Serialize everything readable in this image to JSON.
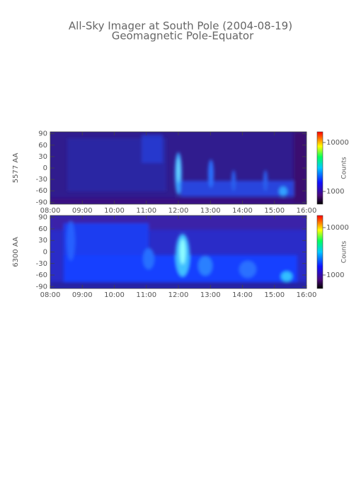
{
  "header": {
    "title": "All-Sky Imager at South Pole (2004-08-19)",
    "subtitle": "Geomagnetic Pole-Equator"
  },
  "chart_data": [
    {
      "type": "heatmap",
      "y_label": "5577 AA",
      "xlim": [
        8,
        16
      ],
      "xticks": [
        {
          "value": 8,
          "label": "08:00"
        },
        {
          "value": 9,
          "label": "09:00"
        },
        {
          "value": 10,
          "label": "10:00"
        },
        {
          "value": 11,
          "label": "11:00"
        },
        {
          "value": 12,
          "label": "12:00"
        },
        {
          "value": 13,
          "label": "13:00"
        },
        {
          "value": 14,
          "label": "14:00"
        },
        {
          "value": 15,
          "label": "15:00"
        },
        {
          "value": 16,
          "label": "16:00"
        }
      ],
      "ylim": [
        -95,
        95
      ],
      "yticks": [
        -90,
        -60,
        -30,
        0,
        30,
        60,
        90
      ],
      "colorbar": {
        "label": "Counts",
        "log": true,
        "lim": [
          550,
          16500
        ],
        "ticks": [
          1000,
          10000
        ]
      }
    },
    {
      "type": "heatmap",
      "y_label": "6300 AA",
      "xlim": [
        8,
        16
      ],
      "xticks": [
        {
          "value": 8,
          "label": "08:00"
        },
        {
          "value": 9,
          "label": "09:00"
        },
        {
          "value": 10,
          "label": "10:00"
        },
        {
          "value": 11,
          "label": "11:00"
        },
        {
          "value": 12,
          "label": "12:00"
        },
        {
          "value": 13,
          "label": "13:00"
        },
        {
          "value": 14,
          "label": "14:00"
        },
        {
          "value": 15,
          "label": "15:00"
        },
        {
          "value": 16,
          "label": "16:00"
        }
      ],
      "ylim": [
        -95,
        95
      ],
      "yticks": [
        -90,
        -60,
        -30,
        0,
        30,
        60,
        90
      ],
      "colorbar": {
        "label": "Counts",
        "log": true,
        "lim": [
          520,
          18000
        ],
        "ticks": [
          1000,
          10000
        ]
      }
    }
  ]
}
